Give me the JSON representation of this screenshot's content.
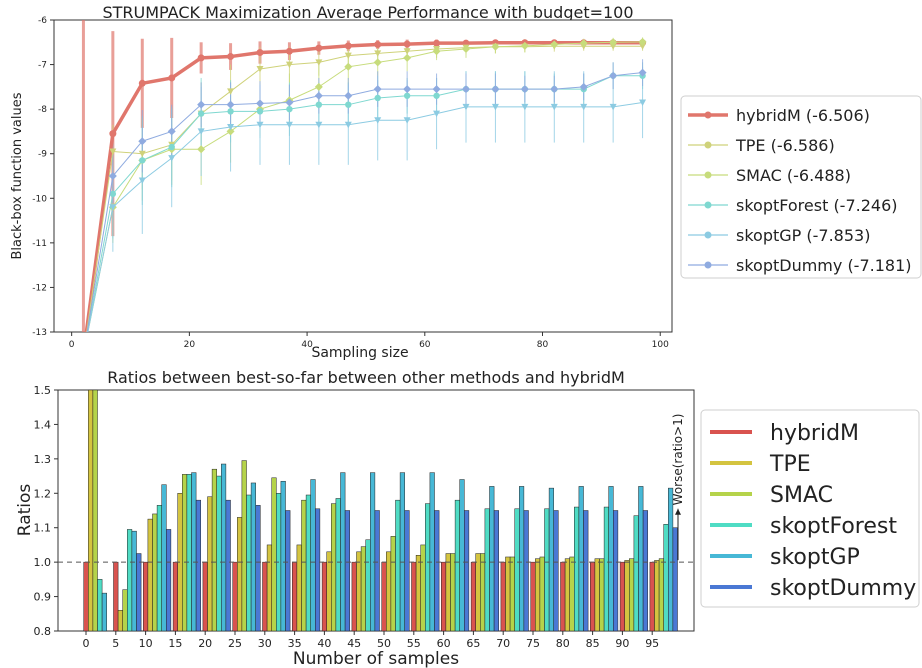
{
  "chart_data": [
    {
      "type": "line",
      "title": "STRUMPACK Maximization Average Performance with budget=100",
      "xlabel": "Sampling size",
      "ylabel": "Black-box function values",
      "xlim": [
        -3,
        102
      ],
      "ylim": [
        -13,
        -6
      ],
      "xticks": [
        "0",
        "20",
        "40",
        "60",
        "80",
        "100"
      ],
      "xtick_values": [
        0,
        20,
        40,
        60,
        80,
        100
      ],
      "yticks": [
        "-13",
        "-12",
        "-11",
        "-10",
        "-9",
        "-8",
        "-7",
        "-6"
      ],
      "ytick_values": [
        -13,
        -12,
        -11,
        -10,
        -9,
        -8,
        -7,
        -6
      ],
      "legend_position": "right, outside",
      "x": [
        2,
        7,
        12,
        17,
        22,
        27,
        32,
        37,
        42,
        47,
        52,
        57,
        62,
        67,
        72,
        77,
        82,
        87,
        92,
        97
      ],
      "series": [
        {
          "name": "hybridM (-6.506)",
          "color": "#e0766c",
          "marker": "circle",
          "thick": true,
          "values": [
            -13.5,
            -8.55,
            -7.42,
            -7.3,
            -6.85,
            -6.82,
            -6.73,
            -6.7,
            -6.63,
            -6.58,
            -6.55,
            -6.54,
            -6.52,
            -6.52,
            -6.51,
            -6.51,
            -6.51,
            -6.51,
            -6.51,
            -6.51
          ],
          "error": [
            12,
            2.3,
            1.0,
            0.9,
            0.35,
            0.3,
            0.25,
            0.2,
            0.15,
            0.12,
            0.1,
            0.1,
            0.08,
            0.07,
            0.07,
            0.06,
            0.06,
            0.05,
            0.05,
            0.05
          ]
        },
        {
          "name": "TPE (-6.586)",
          "color": "#cfd27a",
          "marker": "triangle-down",
          "values": [
            -13.5,
            -8.95,
            -9.0,
            -8.8,
            -8.1,
            -7.6,
            -7.1,
            -7.0,
            -6.95,
            -6.8,
            -6.75,
            -6.7,
            -6.65,
            -6.62,
            -6.6,
            -6.6,
            -6.59,
            -6.59,
            -6.59,
            -6.59
          ],
          "error": [
            0,
            0.6,
            0.8,
            0.8,
            0.7,
            0.6,
            0.5,
            0.4,
            0.3,
            0.3,
            0.25,
            0.2,
            0.2,
            0.15,
            0.15,
            0.12,
            0.12,
            0.1,
            0.1,
            0.1
          ]
        },
        {
          "name": "SMAC (-6.488)",
          "color": "#c7dc7c",
          "marker": "diamond",
          "values": [
            -13.5,
            -10.2,
            -9.15,
            -8.9,
            -8.9,
            -8.5,
            -8.0,
            -7.8,
            -7.5,
            -7.05,
            -6.95,
            -6.85,
            -6.7,
            -6.65,
            -6.6,
            -6.58,
            -6.55,
            -6.52,
            -6.5,
            -6.49
          ],
          "error": [
            0,
            0.8,
            0.9,
            0.8,
            0.8,
            0.7,
            0.6,
            0.6,
            0.5,
            0.4,
            0.3,
            0.3,
            0.2,
            0.2,
            0.15,
            0.15,
            0.1,
            0.1,
            0.1,
            0.1
          ]
        },
        {
          "name": "skoptForest (-7.246)",
          "color": "#7fd8d0",
          "marker": "hexagon",
          "values": [
            -13.5,
            -9.9,
            -9.15,
            -8.85,
            -8.1,
            -8.05,
            -8.05,
            -8.0,
            -7.9,
            -7.9,
            -7.75,
            -7.7,
            -7.7,
            -7.55,
            -7.55,
            -7.55,
            -7.55,
            -7.55,
            -7.25,
            -7.25
          ],
          "error": [
            0,
            1.0,
            1.0,
            0.9,
            0.8,
            0.7,
            0.6,
            0.6,
            0.5,
            0.5,
            0.5,
            0.4,
            0.4,
            0.4,
            0.4,
            0.4,
            0.35,
            0.35,
            0.3,
            0.3
          ]
        },
        {
          "name": "skoptGP (-7.853)",
          "color": "#8ccbe2",
          "marker": "triangle-down",
          "values": [
            -13.5,
            -10.2,
            -9.6,
            -9.1,
            -8.5,
            -8.4,
            -8.35,
            -8.35,
            -8.35,
            -8.35,
            -8.25,
            -8.25,
            -8.1,
            -7.95,
            -7.95,
            -7.95,
            -7.95,
            -7.95,
            -7.95,
            -7.85
          ],
          "error": [
            0,
            1.0,
            1.2,
            1.1,
            1.0,
            1.0,
            0.9,
            0.9,
            0.9,
            0.9,
            0.9,
            0.9,
            0.8,
            0.8,
            0.8,
            0.8,
            0.8,
            0.8,
            0.8,
            0.8
          ]
        },
        {
          "name": "skoptDummy (-7.181)",
          "color": "#8fabe0",
          "marker": "diamond",
          "values": [
            -13.5,
            -9.5,
            -8.72,
            -8.5,
            -7.9,
            -7.9,
            -7.87,
            -7.85,
            -7.7,
            -7.7,
            -7.55,
            -7.55,
            -7.55,
            -7.55,
            -7.55,
            -7.55,
            -7.55,
            -7.5,
            -7.25,
            -7.18
          ],
          "error": [
            0,
            0.8,
            0.7,
            0.6,
            0.5,
            0.5,
            0.5,
            0.4,
            0.4,
            0.4,
            0.4,
            0.4,
            0.35,
            0.35,
            0.35,
            0.3,
            0.3,
            0.3,
            0.3,
            0.3
          ]
        }
      ]
    },
    {
      "type": "bar",
      "title": "Ratios between best-so-far between other methods and hybridM",
      "xlabel": "Number of samples",
      "ylabel": "Ratios",
      "ylim": [
        0.8,
        1.5
      ],
      "yticks": [
        "0.8",
        "0.9",
        "1.0",
        "1.1",
        "1.2",
        "1.3",
        "1.4",
        "1.5"
      ],
      "ytick_values": [
        0.8,
        0.9,
        1.0,
        1.1,
        1.2,
        1.3,
        1.4,
        1.5
      ],
      "categories": [
        "0",
        "5",
        "10",
        "15",
        "20",
        "25",
        "30",
        "35",
        "40",
        "45",
        "50",
        "55",
        "60",
        "65",
        "70",
        "75",
        "80",
        "85",
        "90",
        "95"
      ],
      "reference_line": 1.0,
      "annotation": "Worse(ratio>1)",
      "legend_position": "right, outside",
      "series": [
        {
          "name": "hybridM",
          "color": "#d9534f",
          "values": [
            1.0,
            1.0,
            1.0,
            1.0,
            1.0,
            1.0,
            1.0,
            1.0,
            1.0,
            1.0,
            1.0,
            1.0,
            1.0,
            1.0,
            1.0,
            1.0,
            1.0,
            1.0,
            1.0,
            1.0
          ]
        },
        {
          "name": "TPE",
          "color": "#d4c440",
          "values": [
            1.5,
            0.86,
            1.125,
            1.2,
            1.19,
            1.13,
            1.05,
            1.05,
            1.03,
            1.03,
            1.03,
            1.02,
            1.025,
            1.025,
            1.015,
            1.01,
            1.01,
            1.01,
            1.005,
            1.005
          ]
        },
        {
          "name": "SMAC",
          "color": "#b5d34a",
          "values": [
            1.5,
            0.92,
            1.14,
            1.255,
            1.27,
            1.295,
            1.245,
            1.18,
            1.17,
            1.045,
            1.075,
            1.05,
            1.025,
            1.025,
            1.015,
            1.015,
            1.015,
            1.01,
            1.01,
            1.01
          ]
        },
        {
          "name": "skoptForest",
          "color": "#4fdcc4",
          "values": [
            0.95,
            1.095,
            1.165,
            1.255,
            1.25,
            1.195,
            1.2,
            1.195,
            1.185,
            1.065,
            1.18,
            1.17,
            1.18,
            1.155,
            1.155,
            1.155,
            1.16,
            1.16,
            1.135,
            1.11
          ]
        },
        {
          "name": "skoptGP",
          "color": "#47b8d6",
          "values": [
            0.91,
            1.09,
            1.225,
            1.26,
            1.285,
            1.23,
            1.235,
            1.24,
            1.26,
            1.26,
            1.26,
            1.26,
            1.24,
            1.22,
            1.22,
            1.215,
            1.22,
            1.22,
            1.22,
            1.215
          ]
        },
        {
          "name": "skoptDummy",
          "color": "#4a78d4",
          "values": [
            null,
            1.025,
            1.095,
            1.18,
            1.18,
            1.165,
            1.15,
            1.155,
            1.15,
            1.15,
            1.15,
            1.15,
            1.15,
            1.15,
            1.15,
            1.15,
            1.15,
            1.15,
            1.15,
            1.1
          ]
        }
      ]
    }
  ]
}
